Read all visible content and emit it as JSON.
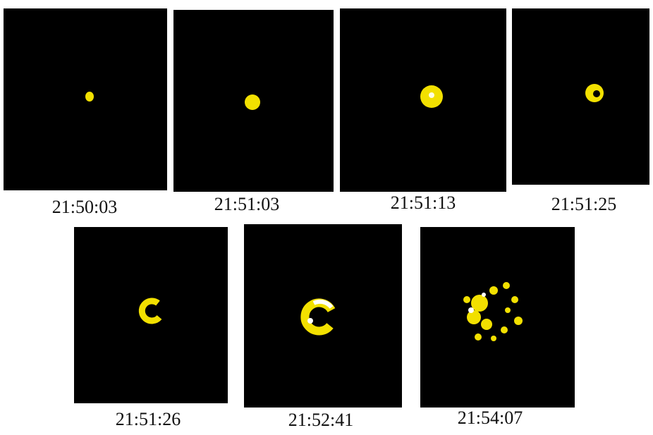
{
  "panels": [
    {
      "label": "21:50:03"
    },
    {
      "label": "21:51:03"
    },
    {
      "label": "21:51:13"
    },
    {
      "label": "21:51:25"
    },
    {
      "label": "21:51:26"
    },
    {
      "label": "21:52:41"
    },
    {
      "label": "21:54:07"
    }
  ]
}
